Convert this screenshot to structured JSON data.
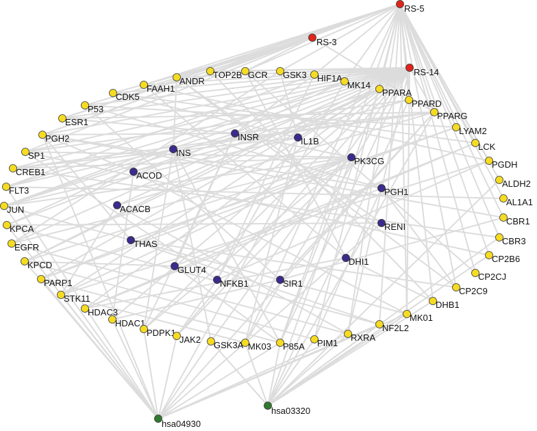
{
  "colors": {
    "target": "#f5dc23",
    "ingredient": "#3a2c8c",
    "compound": "#e0251b",
    "pathway": "#2f7a2f",
    "edge": "#dcdcdc"
  },
  "nodes": [
    {
      "id": "RS-5",
      "group": "compound"
    },
    {
      "id": "RS-3",
      "group": "compound"
    },
    {
      "id": "RS-14",
      "group": "compound"
    },
    {
      "id": "hsa04930",
      "group": "pathway"
    },
    {
      "id": "hsa03320",
      "group": "pathway"
    },
    {
      "id": "INSR",
      "group": "ingredient"
    },
    {
      "id": "IL1B",
      "group": "ingredient"
    },
    {
      "id": "INS",
      "group": "ingredient"
    },
    {
      "id": "PK3CG",
      "group": "ingredient"
    },
    {
      "id": "ACOD",
      "group": "ingredient"
    },
    {
      "id": "PGH1",
      "group": "ingredient"
    },
    {
      "id": "ACACB",
      "group": "ingredient"
    },
    {
      "id": "RENI",
      "group": "ingredient"
    },
    {
      "id": "THAS",
      "group": "ingredient"
    },
    {
      "id": "DHI1",
      "group": "ingredient"
    },
    {
      "id": "GLUT4",
      "group": "ingredient"
    },
    {
      "id": "NFKB1",
      "group": "ingredient"
    },
    {
      "id": "SIR1",
      "group": "ingredient"
    },
    {
      "id": "ANDR",
      "group": "target"
    },
    {
      "id": "TOP2B",
      "group": "target"
    },
    {
      "id": "GCR",
      "group": "target"
    },
    {
      "id": "GSK3",
      "group": "target"
    },
    {
      "id": "HIF1A",
      "group": "target"
    },
    {
      "id": "FAAH1",
      "group": "target"
    },
    {
      "id": "MK14",
      "group": "target"
    },
    {
      "id": "PPARA",
      "group": "target"
    },
    {
      "id": "CDK5",
      "group": "target"
    },
    {
      "id": "PPARD",
      "group": "target"
    },
    {
      "id": "P53",
      "group": "target"
    },
    {
      "id": "PPARG",
      "group": "target"
    },
    {
      "id": "ESR1",
      "group": "target"
    },
    {
      "id": "LYAM2",
      "group": "target"
    },
    {
      "id": "PGH2",
      "group": "target"
    },
    {
      "id": "LCK",
      "group": "target"
    },
    {
      "id": "SP1",
      "group": "target"
    },
    {
      "id": "PGDH",
      "group": "target"
    },
    {
      "id": "CREB1",
      "group": "target"
    },
    {
      "id": "ALDH2",
      "group": "target"
    },
    {
      "id": "FLT3",
      "group": "target"
    },
    {
      "id": "AL1A1",
      "group": "target"
    },
    {
      "id": "JUN",
      "group": "target"
    },
    {
      "id": "CBR1",
      "group": "target"
    },
    {
      "id": "KPCA",
      "group": "target"
    },
    {
      "id": "CBR3",
      "group": "target"
    },
    {
      "id": "EGFR",
      "group": "target"
    },
    {
      "id": "CP2B6",
      "group": "target"
    },
    {
      "id": "KPCD",
      "group": "target"
    },
    {
      "id": "CP2CJ",
      "group": "target"
    },
    {
      "id": "PARP1",
      "group": "target"
    },
    {
      "id": "CP2C9",
      "group": "target"
    },
    {
      "id": "STK11",
      "group": "target"
    },
    {
      "id": "DHB1",
      "group": "target"
    },
    {
      "id": "HDAC3",
      "group": "target"
    },
    {
      "id": "MK01",
      "group": "target"
    },
    {
      "id": "HDAC1",
      "group": "target"
    },
    {
      "id": "NF2L2",
      "group": "target"
    },
    {
      "id": "PDPK1",
      "group": "target"
    },
    {
      "id": "RXRA",
      "group": "target"
    },
    {
      "id": "JAK2",
      "group": "target"
    },
    {
      "id": "PIM1",
      "group": "target"
    },
    {
      "id": "GSK3A",
      "group": "target"
    },
    {
      "id": "MK03",
      "group": "target"
    },
    {
      "id": "P85A",
      "group": "target"
    }
  ],
  "edges": [
    [
      "RS-5",
      "ANDR"
    ],
    [
      "RS-5",
      "TOP2B"
    ],
    [
      "RS-5",
      "GCR"
    ],
    [
      "RS-5",
      "GSK3"
    ],
    [
      "RS-5",
      "HIF1A"
    ],
    [
      "RS-5",
      "MK14"
    ],
    [
      "RS-5",
      "PPARA"
    ],
    [
      "RS-5",
      "PPARD"
    ],
    [
      "RS-5",
      "PPARG"
    ],
    [
      "RS-5",
      "LYAM2"
    ],
    [
      "RS-5",
      "LCK"
    ],
    [
      "RS-5",
      "PGDH"
    ],
    [
      "RS-5",
      "ALDH2"
    ],
    [
      "RS-5",
      "AL1A1"
    ],
    [
      "RS-5",
      "CBR1"
    ],
    [
      "RS-5",
      "CBR3"
    ],
    [
      "RS-5",
      "CP2B6"
    ],
    [
      "RS-5",
      "CP2CJ"
    ],
    [
      "RS-5",
      "CP2C9"
    ],
    [
      "RS-5",
      "DHB1"
    ],
    [
      "RS-5",
      "MK01"
    ],
    [
      "RS-5",
      "NF2L2"
    ],
    [
      "RS-5",
      "RXRA"
    ],
    [
      "RS-5",
      "PIM1"
    ],
    [
      "RS-5",
      "P85A"
    ],
    [
      "RS-5",
      "MK03"
    ],
    [
      "RS-5",
      "FAAH1"
    ],
    [
      "RS-5",
      "PGH2"
    ],
    [
      "RS-5",
      "ESR1"
    ],
    [
      "RS-3",
      "FAAH1"
    ],
    [
      "RS-3",
      "CDK5"
    ],
    [
      "RS-3",
      "P53"
    ],
    [
      "RS-3",
      "ESR1"
    ],
    [
      "RS-3",
      "PGH2"
    ],
    [
      "RS-3",
      "SP1"
    ],
    [
      "RS-3",
      "ANDR"
    ],
    [
      "RS-3",
      "GCR"
    ],
    [
      "RS-3",
      "TOP2B"
    ],
    [
      "RS-3",
      "PPARG"
    ],
    [
      "RS-14",
      "ANDR"
    ],
    [
      "RS-14",
      "GCR"
    ],
    [
      "RS-14",
      "TOP2B"
    ],
    [
      "RS-14",
      "FAAH1"
    ],
    [
      "RS-14",
      "CDK5"
    ],
    [
      "RS-14",
      "P53"
    ],
    [
      "RS-14",
      "ESR1"
    ],
    [
      "RS-14",
      "PGH2"
    ],
    [
      "RS-14",
      "SP1"
    ],
    [
      "RS-14",
      "CREB1"
    ],
    [
      "RS-14",
      "FLT3"
    ],
    [
      "RS-14",
      "JUN"
    ],
    [
      "RS-14",
      "KPCA"
    ],
    [
      "RS-14",
      "EGFR"
    ],
    [
      "RS-14",
      "KPCD"
    ],
    [
      "RS-14",
      "PARP1"
    ],
    [
      "RS-14",
      "STK11"
    ],
    [
      "RS-14",
      "HDAC3"
    ],
    [
      "RS-14",
      "HDAC1"
    ],
    [
      "RS-14",
      "PDPK1"
    ],
    [
      "RS-14",
      "JAK2"
    ],
    [
      "RS-14",
      "GSK3A"
    ],
    [
      "RS-14",
      "MK03"
    ],
    [
      "RS-14",
      "P85A"
    ],
    [
      "RS-14",
      "PPARG"
    ],
    [
      "RS-14",
      "MK01"
    ],
    [
      "RS-14",
      "RXRA"
    ],
    [
      "INSR",
      "PGH2"
    ],
    [
      "INSR",
      "ESR1"
    ],
    [
      "INSR",
      "PPARG"
    ],
    [
      "INSR",
      "HIF1A"
    ],
    [
      "INSR",
      "GLUT4"
    ],
    [
      "INSR",
      "PK3CG"
    ],
    [
      "INSR",
      "MK14"
    ],
    [
      "INSR",
      "JUN"
    ],
    [
      "INSR",
      "PDPK1"
    ],
    [
      "IL1B",
      "GSK3"
    ],
    [
      "IL1B",
      "PPARA"
    ],
    [
      "IL1B",
      "NFKB1"
    ],
    [
      "IL1B",
      "JUN"
    ],
    [
      "IL1B",
      "MK03"
    ],
    [
      "IL1B",
      "CREB1"
    ],
    [
      "IL1B",
      "CDK5"
    ],
    [
      "INS",
      "ANDR"
    ],
    [
      "INS",
      "FLT3"
    ],
    [
      "INS",
      "KPCA"
    ],
    [
      "INS",
      "PPARG"
    ],
    [
      "INS",
      "GSK3A"
    ],
    [
      "INS",
      "P85A"
    ],
    [
      "INS",
      "PDPK1"
    ],
    [
      "PK3CG",
      "JUN"
    ],
    [
      "PK3CG",
      "KPCD"
    ],
    [
      "PK3CG",
      "PARP1"
    ],
    [
      "PK3CG",
      "STK11"
    ],
    [
      "PK3CG",
      "PDPK1"
    ],
    [
      "PK3CG",
      "JAK2"
    ],
    [
      "PK3CG",
      "CREB1"
    ],
    [
      "PK3CG",
      "SP1"
    ],
    [
      "PK3CG",
      "EGFR"
    ],
    [
      "PK3CG",
      "P85A"
    ],
    [
      "ACOD",
      "PPARA"
    ],
    [
      "ACOD",
      "PPARD"
    ],
    [
      "ACOD",
      "HDAC1"
    ],
    [
      "ACOD",
      "PGH2"
    ],
    [
      "ACOD",
      "MK01"
    ],
    [
      "PGH1",
      "PGH2"
    ],
    [
      "PGH1",
      "P53"
    ],
    [
      "PGH1",
      "PIM1"
    ],
    [
      "PGH1",
      "HDAC3"
    ],
    [
      "PGH1",
      "CP2C9"
    ],
    [
      "ACACB",
      "PPARA"
    ],
    [
      "ACACB",
      "PPARG"
    ],
    [
      "ACACB",
      "STK11"
    ],
    [
      "ACACB",
      "RXRA"
    ],
    [
      "RENI",
      "ANDR"
    ],
    [
      "RENI",
      "MK03"
    ],
    [
      "RENI",
      "KPCA"
    ],
    [
      "THAS",
      "PGH2"
    ],
    [
      "THAS",
      "CP2C9"
    ],
    [
      "THAS",
      "NF2L2"
    ],
    [
      "THAS",
      "LYAM2"
    ],
    [
      "DHI1",
      "GCR"
    ],
    [
      "DHI1",
      "DHB1"
    ],
    [
      "DHI1",
      "FAAH1"
    ],
    [
      "DHI1",
      "HDAC3"
    ],
    [
      "GLUT4",
      "LCK"
    ],
    [
      "GLUT4",
      "KPCD"
    ],
    [
      "GLUT4",
      "P85A"
    ],
    [
      "NFKB1",
      "SP1"
    ],
    [
      "NFKB1",
      "PGDH"
    ],
    [
      "NFKB1",
      "HIF1A"
    ],
    [
      "NFKB1",
      "JAK2"
    ],
    [
      "SIR1",
      "P53"
    ],
    [
      "SIR1",
      "HDAC1"
    ],
    [
      "SIR1",
      "PPARG"
    ],
    [
      "SIR1",
      "CBR1"
    ],
    [
      "hsa04930",
      "PGH2"
    ],
    [
      "hsa04930",
      "FLT3"
    ],
    [
      "hsa04930",
      "JUN"
    ],
    [
      "hsa04930",
      "KPCA"
    ],
    [
      "hsa04930",
      "KPCD"
    ],
    [
      "hsa04930",
      "PARP1"
    ],
    [
      "hsa04930",
      "STK11"
    ],
    [
      "hsa04930",
      "HDAC1"
    ],
    [
      "hsa04930",
      "PDPK1"
    ],
    [
      "hsa04930",
      "JAK2"
    ],
    [
      "hsa04930",
      "GSK3A"
    ],
    [
      "hsa04930",
      "PPARG"
    ],
    [
      "hsa04930",
      "MK14"
    ],
    [
      "hsa04930",
      "RXRA"
    ],
    [
      "hsa04930",
      "MK01"
    ],
    [
      "hsa04930",
      "P85A"
    ],
    [
      "hsa04930",
      "NF2L2"
    ],
    [
      "hsa04930",
      "MK03"
    ],
    [
      "hsa03320",
      "PPARA"
    ],
    [
      "hsa03320",
      "PPARD"
    ],
    [
      "hsa03320",
      "PPARG"
    ],
    [
      "hsa03320",
      "RXRA"
    ],
    [
      "hsa03320",
      "MK01"
    ],
    [
      "hsa03320",
      "P85A"
    ],
    [
      "hsa03320",
      "PIM1"
    ],
    [
      "hsa03320",
      "GSK3A"
    ],
    [
      "hsa03320",
      "MK03"
    ],
    [
      "hsa03320",
      "CP2B6"
    ],
    [
      "hsa03320",
      "CBR3"
    ],
    [
      "hsa03320",
      "ALDH2"
    ],
    [
      "hsa03320",
      "DHB1"
    ],
    [
      "hsa03320",
      "NF2L2"
    ],
    [
      "ANDR",
      "CP2C9"
    ],
    [
      "TOP2B",
      "DHB1"
    ],
    [
      "GCR",
      "CP2CJ"
    ],
    [
      "GSK3",
      "EGFR"
    ],
    [
      "HIF1A",
      "FLT3"
    ],
    [
      "MK14",
      "JUN"
    ],
    [
      "PPARA",
      "KPCD"
    ],
    [
      "PPARD",
      "SP1"
    ],
    [
      "PPARG",
      "CREB1"
    ],
    [
      "LYAM2",
      "PARP1"
    ],
    [
      "LCK",
      "HDAC3"
    ],
    [
      "PGDH",
      "STK11"
    ],
    [
      "ESR1",
      "PPARG"
    ],
    [
      "P53",
      "LYAM2"
    ],
    [
      "CDK5",
      "LCK"
    ],
    [
      "FAAH1",
      "PGDH"
    ],
    [
      "PGH2",
      "CBR1"
    ],
    [
      "SP1",
      "CP2B6"
    ],
    [
      "CREB1",
      "CBR3"
    ],
    [
      "FLT3",
      "AL1A1"
    ],
    [
      "JUN",
      "MK01"
    ],
    [
      "KPCA",
      "NF2L2"
    ],
    [
      "EGFR",
      "RXRA"
    ],
    [
      "KPCD",
      "PIM1"
    ],
    [
      "PARP1",
      "P85A"
    ],
    [
      "STK11",
      "MK03"
    ]
  ]
}
